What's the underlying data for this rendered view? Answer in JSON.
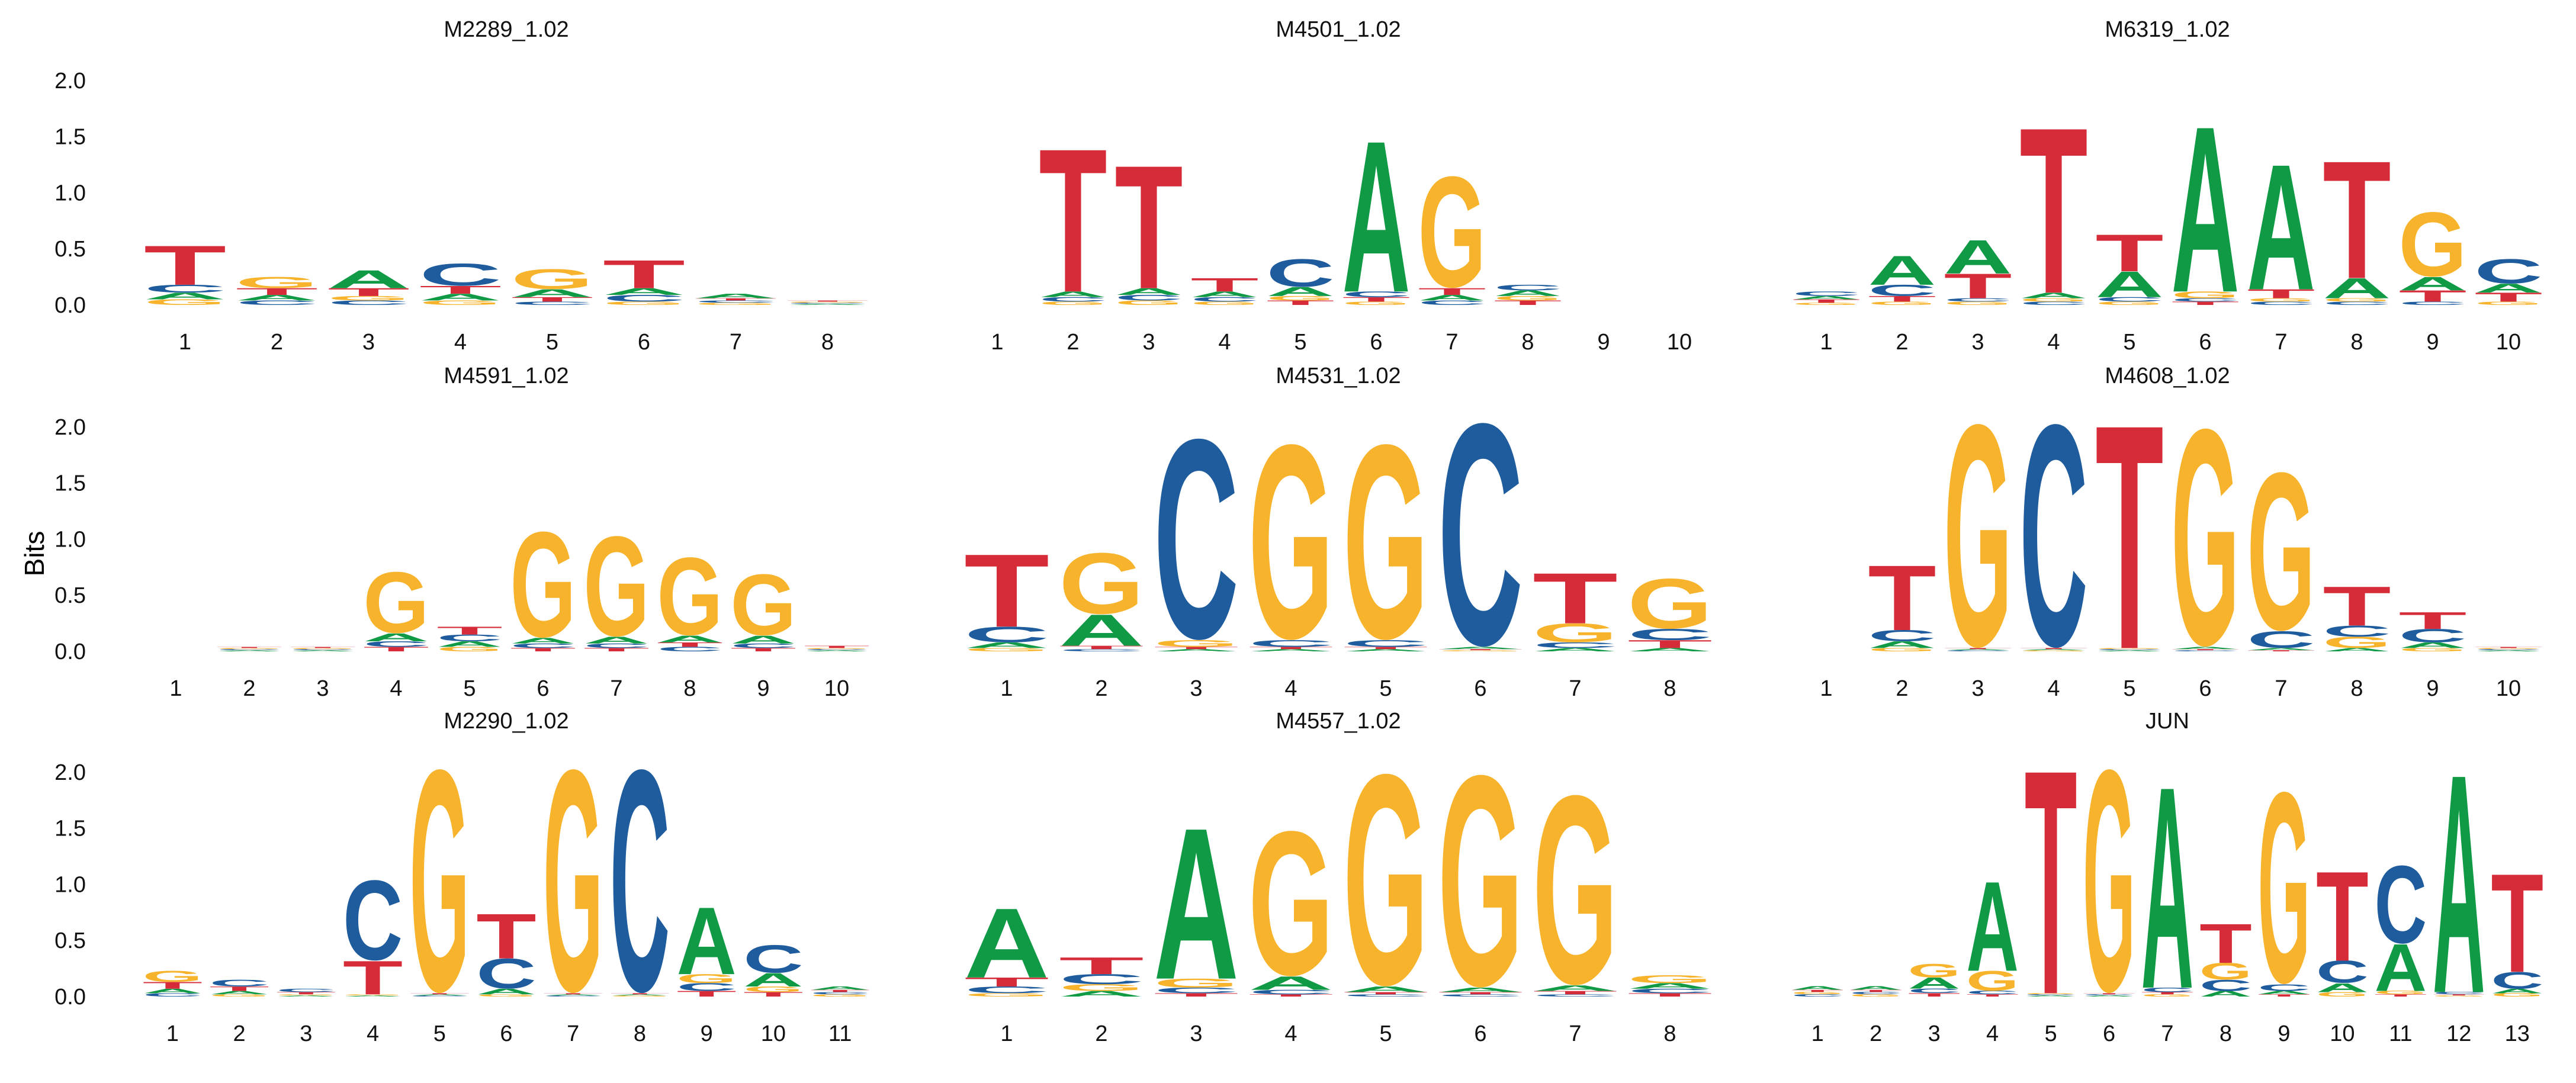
{
  "figure": {
    "ylabel": "Bits"
  },
  "colors": {
    "A": "#119a46",
    "C": "#1f5c9e",
    "G": "#f7b32b",
    "T": "#d62b38"
  },
  "y_axis": {
    "ylim": [
      0,
      2.2
    ],
    "ticks": [
      "0.0",
      "0.5",
      "1.0",
      "1.5",
      "2.0"
    ]
  },
  "chart_data": [
    {
      "type": "sequence_logo",
      "title": "M2289_1.02",
      "x_ticks": [
        "1",
        "2",
        "3",
        "4",
        "5",
        "6",
        "7",
        "8"
      ],
      "positions": [
        {
          "T": 0.35,
          "C": 0.07,
          "G": 0.05,
          "A": 0.06
        },
        {
          "G": 0.1,
          "T": 0.06,
          "A": 0.05,
          "C": 0.04
        },
        {
          "A": 0.16,
          "T": 0.07,
          "C": 0.04,
          "G": 0.04
        },
        {
          "C": 0.2,
          "T": 0.07,
          "A": 0.06,
          "G": 0.04
        },
        {
          "G": 0.18,
          "A": 0.07,
          "T": 0.04,
          "C": 0.03
        },
        {
          "T": 0.25,
          "C": 0.06,
          "A": 0.06,
          "G": 0.03
        },
        {
          "A": 0.04,
          "G": 0.02,
          "C": 0.02,
          "T": 0.02
        },
        {
          "A": 0.01,
          "C": 0.01,
          "G": 0.01,
          "T": 0.01
        }
      ]
    },
    {
      "type": "sequence_logo",
      "title": "M4501_1.02",
      "x_ticks": [
        "1",
        "2",
        "3",
        "4",
        "5",
        "6",
        "7",
        "8",
        "9",
        "10"
      ],
      "positions": [
        {},
        {
          "T": 1.28,
          "A": 0.05,
          "C": 0.04,
          "G": 0.03
        },
        {
          "T": 1.1,
          "A": 0.06,
          "C": 0.05,
          "G": 0.04
        },
        {
          "T": 0.12,
          "A": 0.05,
          "C": 0.04,
          "G": 0.03
        },
        {
          "C": 0.25,
          "A": 0.08,
          "T": 0.04,
          "G": 0.04
        },
        {
          "A": 1.35,
          "C": 0.05,
          "T": 0.04,
          "G": 0.03
        },
        {
          "G": 1.0,
          "T": 0.06,
          "A": 0.05,
          "C": 0.04
        },
        {
          "A": 0.05,
          "C": 0.05,
          "T": 0.04,
          "G": 0.04
        },
        {},
        {}
      ]
    },
    {
      "type": "sequence_logo",
      "title": "M6319_1.02",
      "x_ticks": [
        "1",
        "2",
        "3",
        "4",
        "5",
        "6",
        "7",
        "8",
        "9",
        "10"
      ],
      "positions": [
        {
          "C": 0.04,
          "T": 0.03,
          "A": 0.03,
          "G": 0.02
        },
        {
          "A": 0.26,
          "C": 0.1,
          "T": 0.05,
          "G": 0.03
        },
        {
          "A": 0.3,
          "T": 0.22,
          "G": 0.03,
          "C": 0.03
        },
        {
          "T": 1.48,
          "A": 0.05,
          "C": 0.03,
          "G": 0.03
        },
        {
          "T": 0.33,
          "A": 0.23,
          "C": 0.04,
          "G": 0.03
        },
        {
          "A": 1.48,
          "G": 0.06,
          "T": 0.03,
          "C": 0.03
        },
        {
          "A": 1.12,
          "T": 0.08,
          "C": 0.03,
          "G": 0.03
        },
        {
          "T": 1.05,
          "A": 0.18,
          "C": 0.03,
          "G": 0.03
        },
        {
          "G": 0.58,
          "A": 0.12,
          "T": 0.1,
          "C": 0.03
        },
        {
          "C": 0.22,
          "T": 0.08,
          "A": 0.08,
          "G": 0.03
        }
      ]
    },
    {
      "type": "sequence_logo",
      "title": "M4591_1.02",
      "x_ticks": [
        "1",
        "2",
        "3",
        "4",
        "5",
        "6",
        "7",
        "8",
        "9",
        "10"
      ],
      "positions": [
        {},
        {
          "A": 0.01,
          "C": 0.01,
          "G": 0.01,
          "T": 0.01
        },
        {
          "A": 0.01,
          "C": 0.01,
          "G": 0.01,
          "T": 0.01
        },
        {
          "G": 0.55,
          "A": 0.07,
          "C": 0.05,
          "T": 0.04
        },
        {
          "T": 0.07,
          "C": 0.06,
          "A": 0.05,
          "G": 0.04
        },
        {
          "G": 0.95,
          "A": 0.05,
          "C": 0.04,
          "T": 0.03
        },
        {
          "G": 0.9,
          "A": 0.06,
          "C": 0.04,
          "T": 0.03
        },
        {
          "G": 0.7,
          "A": 0.06,
          "C": 0.04,
          "T": 0.04
        },
        {
          "G": 0.55,
          "A": 0.07,
          "C": 0.04,
          "T": 0.03
        },
        {
          "T": 0.02,
          "A": 0.01,
          "C": 0.01,
          "G": 0.01
        }
      ]
    },
    {
      "type": "sequence_logo",
      "title": "M4531_1.02",
      "x_ticks": [
        "1",
        "2",
        "3",
        "4",
        "5",
        "6",
        "7",
        "8"
      ],
      "positions": [
        {
          "T": 0.65,
          "C": 0.14,
          "A": 0.05,
          "G": 0.03
        },
        {
          "G": 0.55,
          "A": 0.28,
          "T": 0.03,
          "C": 0.02
        },
        {
          "C": 1.8,
          "G": 0.06,
          "A": 0.02,
          "T": 0.02
        },
        {
          "G": 1.75,
          "C": 0.06,
          "A": 0.02,
          "T": 0.02
        },
        {
          "G": 1.75,
          "C": 0.06,
          "A": 0.02,
          "T": 0.02
        },
        {
          "C": 2.0,
          "A": 0.02,
          "G": 0.01,
          "T": 0.01
        },
        {
          "T": 0.45,
          "G": 0.17,
          "C": 0.05,
          "A": 0.03
        },
        {
          "G": 0.45,
          "C": 0.1,
          "T": 0.07,
          "A": 0.03
        }
      ]
    },
    {
      "type": "sequence_logo",
      "title": "M4608_1.02",
      "x_ticks": [
        "1",
        "2",
        "3",
        "4",
        "5",
        "6",
        "7",
        "8",
        "9",
        "10"
      ],
      "positions": [
        {},
        {
          "T": 0.58,
          "C": 0.1,
          "A": 0.06,
          "G": 0.03
        },
        {
          "G": 2.0,
          "C": 0.01,
          "A": 0.01,
          "T": 0.01
        },
        {
          "C": 2.0,
          "G": 0.01,
          "A": 0.01,
          "T": 0.01
        },
        {
          "T": 2.0,
          "A": 0.01,
          "C": 0.01,
          "G": 0.01
        },
        {
          "G": 1.95,
          "A": 0.02,
          "C": 0.01,
          "T": 0.01
        },
        {
          "G": 1.42,
          "C": 0.15,
          "A": 0.02,
          "T": 0.01
        },
        {
          "T": 0.35,
          "G": 0.1,
          "C": 0.1,
          "A": 0.03
        },
        {
          "T": 0.15,
          "C": 0.12,
          "A": 0.05,
          "G": 0.03
        },
        {
          "A": 0.01,
          "C": 0.01,
          "G": 0.01,
          "T": 0.01
        }
      ]
    },
    {
      "type": "sequence_logo",
      "title": "M2290_1.02",
      "x_ticks": [
        "1",
        "2",
        "3",
        "4",
        "5",
        "6",
        "7",
        "8",
        "9",
        "10",
        "11"
      ],
      "positions": [
        {
          "G": 0.1,
          "T": 0.06,
          "A": 0.04,
          "C": 0.03
        },
        {
          "C": 0.06,
          "T": 0.04,
          "A": 0.03,
          "G": 0.02
        },
        {
          "C": 0.03,
          "T": 0.02,
          "A": 0.01,
          "G": 0.01
        },
        {
          "C": 0.72,
          "T": 0.3,
          "A": 0.01,
          "G": 0.01
        },
        {
          "G": 2.0,
          "C": 0.01,
          "A": 0.01,
          "T": 0.01
        },
        {
          "T": 0.4,
          "C": 0.27,
          "A": 0.05,
          "G": 0.02
        },
        {
          "G": 2.0,
          "C": 0.01,
          "A": 0.01,
          "T": 0.01
        },
        {
          "C": 2.0,
          "G": 0.01,
          "A": 0.01,
          "T": 0.01
        },
        {
          "A": 0.6,
          "G": 0.08,
          "C": 0.07,
          "T": 0.05
        },
        {
          "C": 0.25,
          "A": 0.12,
          "G": 0.05,
          "T": 0.04
        },
        {
          "A": 0.03,
          "G": 0.02,
          "C": 0.02,
          "T": 0.02
        }
      ]
    },
    {
      "type": "sequence_logo",
      "title": "M4557_1.02",
      "x_ticks": [
        "1",
        "2",
        "3",
        "4",
        "5",
        "6",
        "7",
        "8"
      ],
      "positions": [
        {
          "A": 0.62,
          "T": 0.08,
          "C": 0.06,
          "G": 0.03
        },
        {
          "T": 0.15,
          "C": 0.09,
          "G": 0.06,
          "A": 0.05
        },
        {
          "A": 1.35,
          "G": 0.08,
          "C": 0.05,
          "T": 0.03
        },
        {
          "G": 1.3,
          "A": 0.12,
          "C": 0.04,
          "T": 0.02
        },
        {
          "G": 1.9,
          "A": 0.05,
          "C": 0.02,
          "T": 0.02
        },
        {
          "G": 1.9,
          "A": 0.04,
          "C": 0.02,
          "T": 0.02
        },
        {
          "G": 1.7,
          "A": 0.05,
          "T": 0.03,
          "C": 0.02
        },
        {
          "G": 0.07,
          "A": 0.05,
          "C": 0.04,
          "T": 0.03
        }
      ]
    },
    {
      "type": "sequence_logo",
      "title": "JUN",
      "x_ticks": [
        "1",
        "2",
        "3",
        "4",
        "5",
        "6",
        "7",
        "8",
        "9",
        "10",
        "11",
        "12",
        "13"
      ],
      "positions": [
        {
          "A": 0.03,
          "C": 0.02,
          "G": 0.02,
          "T": 0.02
        },
        {
          "A": 0.03,
          "G": 0.02,
          "C": 0.02,
          "T": 0.02
        },
        {
          "G": 0.12,
          "A": 0.1,
          "C": 0.04,
          "T": 0.03
        },
        {
          "A": 0.8,
          "G": 0.18,
          "C": 0.03,
          "T": 0.02
        },
        {
          "T": 2.0,
          "A": 0.01,
          "C": 0.01,
          "G": 0.01
        },
        {
          "G": 2.0,
          "A": 0.01,
          "C": 0.01,
          "T": 0.01
        },
        {
          "A": 1.8,
          "C": 0.04,
          "G": 0.02,
          "T": 0.02
        },
        {
          "T": 0.35,
          "G": 0.15,
          "C": 0.1,
          "A": 0.05
        },
        {
          "G": 1.72,
          "C": 0.06,
          "A": 0.03,
          "T": 0.02
        },
        {
          "T": 0.8,
          "C": 0.2,
          "A": 0.08,
          "G": 0.04
        },
        {
          "C": 0.7,
          "A": 0.42,
          "G": 0.03,
          "T": 0.02
        },
        {
          "A": 1.95,
          "C": 0.02,
          "G": 0.01,
          "T": 0.01
        },
        {
          "T": 0.88,
          "C": 0.15,
          "A": 0.04,
          "G": 0.03
        }
      ]
    }
  ]
}
